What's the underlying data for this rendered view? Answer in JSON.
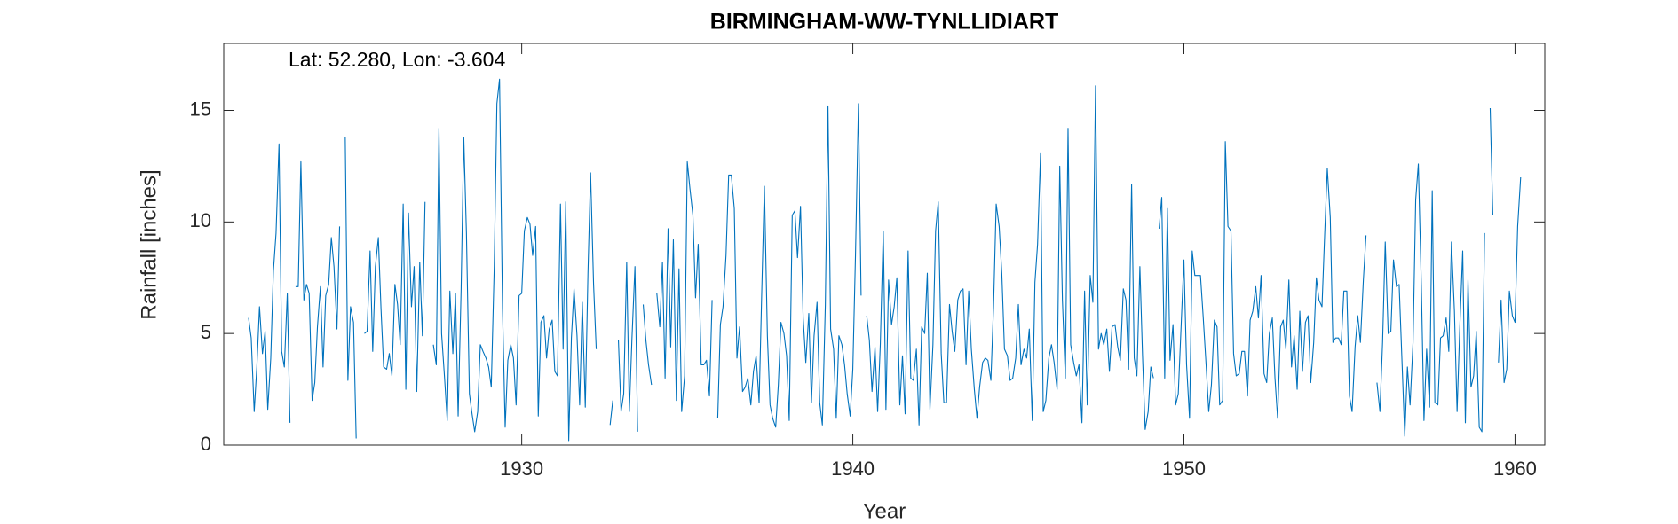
{
  "chart_data": {
    "type": "line",
    "title": "BIRMINGHAM-WW-TYNLLIDIART",
    "annotation": "Lat: 52.280, Lon: -3.604",
    "xlabel": "Year",
    "ylabel": "Rainfall [inches]",
    "color": "#0072bd",
    "xlim": [
      1921,
      1960.9
    ],
    "xticks": [
      1930,
      1940,
      1950,
      1960
    ],
    "ylim": [
      0,
      18
    ],
    "yticks": [
      0,
      5,
      10,
      15
    ],
    "grid": false,
    "x": [
      1921.75,
      1921.83,
      1921.92,
      1922,
      1922.08,
      1922.17,
      1922.25,
      1922.33,
      1922.42,
      1922.5,
      1922.58,
      1922.67,
      1922.75,
      1922.83,
      1922.92,
      1923,
      1923.08,
      1923.17,
      1923.25,
      1923.33,
      1923.42,
      1923.5,
      1923.58,
      1923.67,
      1923.75,
      1923.83,
      1923.92,
      1924,
      1924.08,
      1924.17,
      1924.25,
      1924.33,
      1924.42,
      1924.5,
      1924.58,
      1924.67,
      1924.75,
      1924.83,
      1924.92,
      1925,
      1925.08,
      1925.17,
      1925.25,
      1925.33,
      1925.42,
      1925.5,
      1925.58,
      1925.67,
      1925.75,
      1925.83,
      1925.92,
      1926,
      1926.08,
      1926.17,
      1926.25,
      1926.33,
      1926.42,
      1926.5,
      1926.58,
      1926.67,
      1926.75,
      1926.83,
      1926.92,
      1927,
      1927.08,
      1927.17,
      1927.25,
      1927.33,
      1927.42,
      1927.5,
      1927.58,
      1927.67,
      1927.75,
      1927.83,
      1927.92,
      1928,
      1928.08,
      1928.17,
      1928.25,
      1928.33,
      1928.42,
      1928.5,
      1928.58,
      1928.67,
      1928.75,
      1928.83,
      1928.92,
      1929,
      1929.08,
      1929.17,
      1929.25,
      1929.33,
      1929.42,
      1929.5,
      1929.58,
      1929.67,
      1929.75,
      1929.83,
      1929.92,
      1930,
      1930.08,
      1930.17,
      1930.25,
      1930.33,
      1930.42,
      1930.5,
      1930.58,
      1930.67,
      1930.75,
      1930.83,
      1930.92,
      1931,
      1931.08,
      1931.17,
      1931.25,
      1931.33,
      1931.42,
      1931.5,
      1931.58,
      1931.67,
      1931.75,
      1931.83,
      1931.92,
      1932,
      1932.08,
      1932.17,
      1932.25,
      1932.33,
      1932.42,
      1932.5,
      1932.58,
      1932.67,
      1932.75,
      1932.83,
      1932.92,
      1933,
      1933.08,
      1933.17,
      1933.25,
      1933.33,
      1933.42,
      1933.5,
      1933.58,
      1933.67,
      1933.75,
      1933.83,
      1933.92,
      1934,
      1934.08,
      1934.17,
      1934.25,
      1934.33,
      1934.42,
      1934.5,
      1934.58,
      1934.67,
      1934.75,
      1934.83,
      1934.92,
      1935,
      1935.08,
      1935.17,
      1935.25,
      1935.33,
      1935.42,
      1935.5,
      1935.58,
      1935.67,
      1935.75,
      1935.83,
      1935.92,
      1936,
      1936.08,
      1936.17,
      1936.25,
      1936.33,
      1936.42,
      1936.5,
      1936.58,
      1936.67,
      1936.75,
      1936.83,
      1936.92,
      1937,
      1937.08,
      1937.17,
      1937.25,
      1937.33,
      1937.42,
      1937.5,
      1937.58,
      1937.67,
      1937.75,
      1937.83,
      1937.92,
      1938,
      1938.08,
      1938.17,
      1938.25,
      1938.33,
      1938.42,
      1938.5,
      1938.58,
      1938.67,
      1938.75,
      1938.83,
      1938.92,
      1939,
      1939.08,
      1939.17,
      1939.25,
      1939.33,
      1939.42,
      1939.5,
      1939.58,
      1939.67,
      1939.75,
      1939.83,
      1939.92,
      1940,
      1940.08,
      1940.17,
      1940.25,
      1940.33,
      1940.42,
      1940.5,
      1940.58,
      1940.67,
      1940.75,
      1940.83,
      1940.92,
      1941,
      1941.08,
      1941.17,
      1941.25,
      1941.33,
      1941.42,
      1941.5,
      1941.58,
      1941.67,
      1941.75,
      1941.83,
      1941.92,
      1942,
      1942.08,
      1942.17,
      1942.25,
      1942.33,
      1942.42,
      1942.5,
      1942.58,
      1942.67,
      1942.75,
      1942.83,
      1942.92,
      1943,
      1943.08,
      1943.17,
      1943.25,
      1943.33,
      1943.42,
      1943.5,
      1943.58,
      1943.67,
      1943.75,
      1943.83,
      1943.92,
      1944,
      1944.08,
      1944.17,
      1944.25,
      1944.33,
      1944.42,
      1944.5,
      1944.58,
      1944.67,
      1944.75,
      1944.83,
      1944.92,
      1945,
      1945.08,
      1945.17,
      1945.25,
      1945.33,
      1945.42,
      1945.5,
      1945.58,
      1945.67,
      1945.75,
      1945.83,
      1945.92,
      1946,
      1946.08,
      1946.17,
      1946.25,
      1946.33,
      1946.42,
      1946.5,
      1946.58,
      1946.67,
      1946.75,
      1946.83,
      1946.92,
      1947,
      1947.08,
      1947.17,
      1947.25,
      1947.33,
      1947.42,
      1947.5,
      1947.58,
      1947.67,
      1947.75,
      1947.83,
      1947.92,
      1948,
      1948.08,
      1948.17,
      1948.25,
      1948.33,
      1948.42,
      1948.5,
      1948.58,
      1948.67,
      1948.75,
      1948.83,
      1948.92,
      1949,
      1949.08,
      1949.17,
      1949.25,
      1949.33,
      1949.42,
      1949.5,
      1949.58,
      1949.67,
      1949.75,
      1949.83,
      1949.92,
      1950,
      1950.08,
      1950.17,
      1950.25,
      1950.33,
      1950.42,
      1950.5,
      1950.58,
      1950.67,
      1950.75,
      1950.83,
      1950.92,
      1951,
      1951.08,
      1951.17,
      1951.25,
      1951.33,
      1951.42,
      1951.5,
      1951.58,
      1951.67,
      1951.75,
      1951.83,
      1951.92,
      1952,
      1952.08,
      1952.17,
      1952.25,
      1952.33,
      1952.42,
      1952.5,
      1952.58,
      1952.67,
      1952.75,
      1952.83,
      1952.92,
      1953,
      1953.08,
      1953.17,
      1953.25,
      1953.33,
      1953.42,
      1953.5,
      1953.58,
      1953.67,
      1953.75,
      1953.83,
      1953.92,
      1954,
      1954.08,
      1954.17,
      1954.25,
      1954.33,
      1954.42,
      1954.5,
      1954.58,
      1954.67,
      1954.75,
      1954.83,
      1954.92,
      1955,
      1955.08,
      1955.17,
      1955.25,
      1955.33,
      1955.42,
      1955.5,
      1955.58,
      1955.67,
      1955.75,
      1955.83,
      1955.92,
      1956,
      1956.08,
      1956.17,
      1956.25,
      1956.33,
      1956.42,
      1956.5,
      1956.58,
      1956.67,
      1956.75,
      1956.83,
      1956.92,
      1957,
      1957.08,
      1957.17,
      1957.25,
      1957.33,
      1957.42,
      1957.5,
      1957.58,
      1957.67,
      1957.75,
      1957.83,
      1957.92,
      1958,
      1958.08,
      1958.17,
      1958.25,
      1958.33,
      1958.42,
      1958.5,
      1958.58,
      1958.67,
      1958.75,
      1958.83,
      1958.92,
      1959,
      1959.08,
      1959.17,
      1959.25,
      1959.33,
      1959.42,
      1959.5,
      1959.58,
      1959.67,
      1959.75,
      1959.83,
      1959.92,
      1960,
      1960.08,
      1960.17
    ],
    "values": [
      5.7,
      4.8,
      1.5,
      3.5,
      6.2,
      4.1,
      5.1,
      1.6,
      3.9,
      7.8,
      9.5,
      13.5,
      4.2,
      3.5,
      6.8,
      1.0,
      null,
      7.1,
      7.1,
      12.7,
      6.5,
      7.2,
      6.8,
      2.0,
      2.8,
      5.3,
      7.1,
      3.5,
      6.7,
      7.2,
      9.3,
      8.0,
      5.2,
      9.8,
      null,
      13.8,
      2.9,
      6.2,
      5.5,
      0.3,
      null,
      null,
      5.0,
      5.1,
      8.7,
      4.2,
      8.0,
      9.3,
      6.1,
      3.5,
      3.4,
      4.1,
      3.1,
      7.2,
      6.3,
      4.5,
      10.8,
      2.5,
      10.4,
      6.2,
      8.0,
      2.4,
      8.2,
      4.9,
      10.9,
      null,
      null,
      4.5,
      3.6,
      14.2,
      5.0,
      3.0,
      1.1,
      6.9,
      4.1,
      6.8,
      1.3,
      7.0,
      13.8,
      9.5,
      2.3,
      1.4,
      0.6,
      1.5,
      4.5,
      4.2,
      3.9,
      3.5,
      2.6,
      8.0,
      15.3,
      16.4,
      6.1,
      0.8,
      3.8,
      4.5,
      3.9,
      1.8,
      6.7,
      6.8,
      9.6,
      10.2,
      9.9,
      8.5,
      9.8,
      1.3,
      5.5,
      5.8,
      3.9,
      5.2,
      5.6,
      3.3,
      3.1,
      10.8,
      4.3,
      10.9,
      0.2,
      4.8,
      7.0,
      4.9,
      1.8,
      6.4,
      1.7,
      7.7,
      12.2,
      7.2,
      4.3,
      null,
      null,
      null,
      null,
      0.9,
      2.0,
      null,
      4.7,
      1.5,
      2.3,
      8.2,
      1.5,
      4.8,
      8.0,
      0.6,
      null,
      6.3,
      4.7,
      3.6,
      2.7,
      null,
      6.8,
      5.3,
      8.2,
      3.0,
      9.7,
      4.4,
      9.2,
      2.0,
      7.9,
      1.5,
      3.1,
      12.7,
      11.5,
      10.3,
      6.6,
      9.0,
      3.6,
      3.6,
      3.8,
      2.2,
      6.5,
      null,
      1.2,
      5.4,
      6.2,
      8.5,
      12.1,
      12.1,
      10.6,
      3.9,
      5.3,
      2.4,
      2.6,
      3.0,
      1.8,
      3.3,
      4.0,
      1.9,
      6.9,
      11.6,
      4.9,
      1.8,
      1.2,
      0.8,
      2.7,
      5.5,
      5.0,
      4.0,
      1.1,
      10.3,
      10.5,
      8.4,
      10.7,
      5.7,
      3.7,
      5.9,
      1.9,
      4.9,
      6.4,
      1.9,
      0.9,
      6.3,
      15.2,
      5.2,
      4.3,
      1.2,
      4.9,
      4.5,
      3.6,
      2.3,
      1.3,
      3.4,
      8.5,
      15.3,
      6.7,
      null,
      5.8,
      4.7,
      2.4,
      4.4,
      1.5,
      4.5,
      9.6,
      1.6,
      7.4,
      5.4,
      6.2,
      7.5,
      1.8,
      4.0,
      1.4,
      8.7,
      3.0,
      2.9,
      4.3,
      0.9,
      5.3,
      5.0,
      7.7,
      1.6,
      4.5,
      9.6,
      10.9,
      4.1,
      1.9,
      1.9,
      6.3,
      5.1,
      4.2,
      6.5,
      6.9,
      7.0,
      3.6,
      6.9,
      4.3,
      2.5,
      1.2,
      2.6,
      3.7,
      3.9,
      3.8,
      2.9,
      6.2,
      10.8,
      9.8,
      7.7,
      4.3,
      4.0,
      2.9,
      3.0,
      3.9,
      6.3,
      3.6,
      4.3,
      3.9,
      5.2,
      1.1,
      7.3,
      9.0,
      13.1,
      1.5,
      2.0,
      3.9,
      4.5,
      3.7,
      2.5,
      12.5,
      6.5,
      3.0,
      14.2,
      4.5,
      3.7,
      3.1,
      3.6,
      1.0,
      6.9,
      1.8,
      7.6,
      6.4,
      16.1,
      4.3,
      5.0,
      4.5,
      5.2,
      3.3,
      5.3,
      5.4,
      4.4,
      3.8,
      7.0,
      6.5,
      3.4,
      11.7,
      3.9,
      3.1,
      8.0,
      4.0,
      0.7,
      1.5,
      3.5,
      3.0,
      null,
      9.7,
      11.1,
      3.0,
      10.6,
      3.8,
      5.4,
      1.8,
      2.3,
      5.5,
      8.3,
      3.6,
      1.2,
      8.7,
      7.6,
      7.6,
      7.6,
      5.8,
      3.6,
      1.5,
      2.7,
      5.6,
      5.3,
      1.8,
      2.0,
      13.6,
      9.8,
      9.6,
      4.1,
      3.1,
      3.2,
      4.2,
      4.2,
      2.2,
      5.6,
      6.0,
      7.1,
      5.7,
      7.6,
      3.2,
      2.8,
      5.0,
      5.7,
      3.0,
      1.2,
      5.3,
      5.6,
      4.3,
      7.4,
      3.5,
      4.9,
      2.5,
      6.0,
      3.3,
      5.5,
      5.8,
      2.8,
      4.6,
      7.5,
      6.5,
      6.2,
      9.4,
      12.4,
      10.2,
      4.6,
      4.8,
      4.8,
      4.5,
      6.9,
      6.9,
      2.2,
      1.5,
      4.4,
      5.8,
      4.6,
      7.4,
      9.4,
      null,
      null,
      null,
      2.8,
      1.5,
      4.6,
      9.1,
      5.0,
      5.1,
      8.3,
      7.1,
      7.2,
      4.0,
      0.4,
      3.5,
      1.8,
      4.6,
      11.0,
      12.6,
      7.2,
      1.1,
      4.3,
      1.7,
      11.4,
      1.9,
      1.8,
      4.8,
      4.9,
      5.7,
      4.2,
      9.1,
      6.0,
      1.5,
      5.2,
      8.7,
      1.0,
      7.4,
      2.6,
      3.1,
      5.1,
      0.8,
      0.6,
      9.5,
      null,
      15.1,
      10.3,
      null,
      3.7,
      6.5,
      2.8,
      3.4,
      6.9,
      5.8,
      5.5,
      9.8,
      12.0
    ]
  }
}
